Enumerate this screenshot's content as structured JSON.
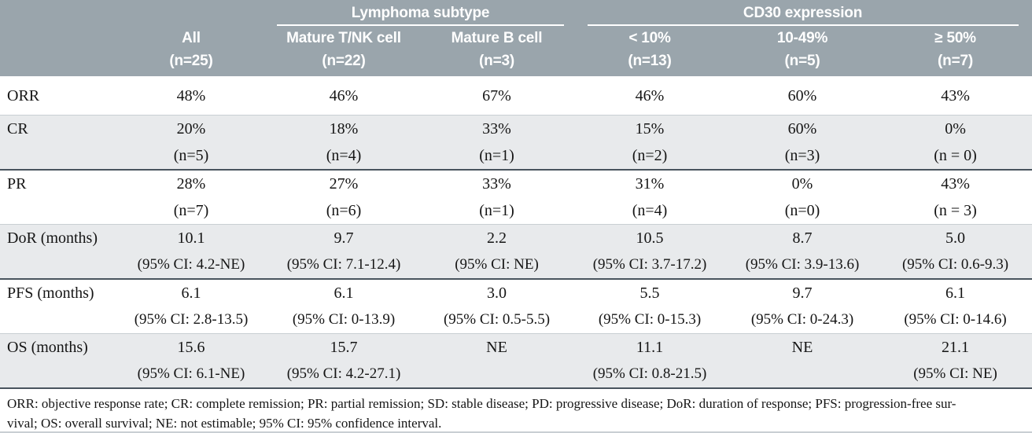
{
  "colors": {
    "header_bg": "#9aa5ac",
    "header_text": "#ffffff",
    "shaded_row": "#e8eaec",
    "rule_dark": "#49545e",
    "rule_light": "#c9cfd3",
    "body_text": "#151515"
  },
  "header": {
    "groups": [
      {
        "label": "Lymphoma subtype"
      },
      {
        "label": "CD30 expression"
      }
    ],
    "columns": [
      {
        "line1": "All",
        "line2": "(n=25)"
      },
      {
        "line1": "Mature T/NK cell",
        "line2": "(n=22)"
      },
      {
        "line1": "Mature B cell",
        "line2": "(n=3)"
      },
      {
        "line1": "< 10%",
        "line2": "(n=13)"
      },
      {
        "line1": "10-49%",
        "line2": "(n=5)"
      },
      {
        "line1": "≥ 50%",
        "line2": "(n=7)"
      }
    ]
  },
  "rows": [
    {
      "label": "ORR",
      "values": [
        "48%",
        "46%",
        "67%",
        "46%",
        "60%",
        "43%"
      ]
    },
    {
      "label": "CR",
      "values": [
        "20%",
        "18%",
        "33%",
        "15%",
        "60%",
        "0%"
      ],
      "sub": [
        "(n=5)",
        "(n=4)",
        "(n=1)",
        "(n=2)",
        "(n=3)",
        "(n = 0)"
      ]
    },
    {
      "label": "PR",
      "values": [
        "28%",
        "27%",
        "33%",
        "31%",
        "0%",
        "43%"
      ],
      "sub": [
        "(n=7)",
        "(n=6)",
        "(n=1)",
        "(n=4)",
        "(n=0)",
        "(n = 3)"
      ]
    },
    {
      "label": "DoR (months)",
      "values": [
        "10.1",
        "9.7",
        "2.2",
        "10.5",
        "8.7",
        "5.0"
      ],
      "sub": [
        "(95% CI: 4.2-NE)",
        "(95% CI: 7.1-12.4)",
        "(95% CI: NE)",
        "(95% CI: 3.7-17.2)",
        "(95% CI: 3.9-13.6)",
        "(95% CI: 0.6-9.3)"
      ]
    },
    {
      "label": "PFS (months)",
      "values": [
        "6.1",
        "6.1",
        "3.0",
        "5.5",
        "9.7",
        "6.1"
      ],
      "sub": [
        "(95% CI: 2.8-13.5)",
        "(95% CI: 0-13.9)",
        "(95% CI: 0.5-5.5)",
        "(95% CI: 0-15.3)",
        "(95% CI: 0-24.3)",
        "(95% CI: 0-14.6)"
      ]
    },
    {
      "label": "OS (months)",
      "values": [
        "15.6",
        "15.7",
        "NE",
        "11.1",
        "NE",
        "21.1"
      ],
      "sub": [
        "(95% CI: 6.1-NE)",
        "(95% CI: 4.2-27.1)",
        "",
        "(95% CI: 0.8-21.5)",
        "",
        "(95% CI: NE)"
      ]
    }
  ],
  "footnote": {
    "line1": "ORR: objective response rate; CR: complete remission; PR: partial remission; SD: stable disease; PD: progressive disease; DoR: duration of response; PFS: progression-free sur-",
    "line2": "vival; OS: overall survival; NE: not estimable; 95% CI: 95% confidence interval."
  }
}
